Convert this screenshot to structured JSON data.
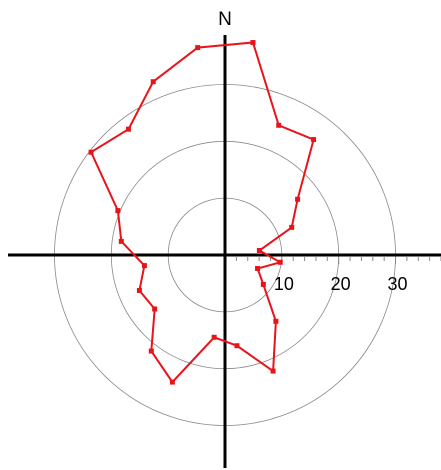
{
  "chart_data": {
    "type": "polar",
    "north_label": "N",
    "theta": [
      7.5,
      22.5,
      37.5,
      52.5,
      67.5,
      82.5,
      97.5,
      112.5,
      127.5,
      142.5,
      157.5,
      172.5,
      187.5,
      202.5,
      217.5,
      232.5,
      247.5,
      262.5,
      277.5,
      292.5,
      307.5,
      322.5,
      337.5,
      352.5
    ],
    "values": [
      37.7,
      24.7,
      25.6,
      16.1,
      12.7,
      6.1,
      9.8,
      6.2,
      8.5,
      14.7,
      22.1,
      16.1,
      14.6,
      24.2,
      21.3,
      15.6,
      16.3,
      14.3,
      18.4,
      20.4,
      29.7,
      27.9,
      33,
      36.8
    ],
    "color": "#e8141a",
    "rlim": [
      0,
      38
    ],
    "rticks": [
      10,
      20,
      30
    ],
    "rminorticks": [
      2,
      4,
      6,
      8,
      12,
      14,
      16,
      18,
      22,
      24,
      26,
      28,
      32,
      34,
      36,
      38
    ],
    "grid": true
  }
}
